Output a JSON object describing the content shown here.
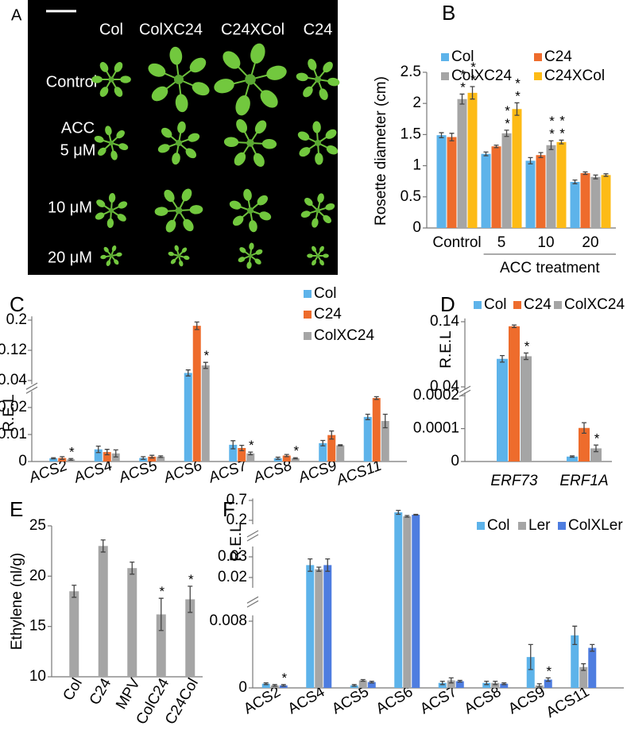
{
  "photo_panel": {
    "panel_label": "A",
    "column_labels": [
      "Col",
      "ColXC24",
      "C24XCol",
      "C24"
    ],
    "row_labels": [
      "Control",
      "ACC",
      "5 μM",
      "10 μM",
      "20 μM"
    ]
  },
  "chart_data": [
    {
      "type": "bar",
      "panel_label": "B",
      "y_label": "Rosette diameter (cm)",
      "x_label": "ACC treatment",
      "categories": [
        "Control",
        "5",
        "10",
        "20"
      ],
      "ylim": [
        0,
        2.5
      ],
      "yticks": [
        0,
        0.5,
        1,
        1.5,
        2,
        2.5
      ],
      "series": [
        {
          "name": "Col",
          "color": "#5db3ea",
          "values": [
            1.49,
            1.19,
            1.08,
            0.74
          ],
          "errors": [
            0.04,
            0.03,
            0.05,
            0.03
          ]
        },
        {
          "name": "C24",
          "color": "#ee6c2c",
          "values": [
            1.46,
            1.31,
            1.17,
            0.88
          ],
          "errors": [
            0.06,
            0.02,
            0.04,
            0.02
          ]
        },
        {
          "name": "ColXC24",
          "color": "#a5a5a5",
          "values": [
            2.07,
            1.52,
            1.33,
            0.82
          ],
          "errors": [
            0.08,
            0.05,
            0.07,
            0.03
          ],
          "significance": [
            "**",
            "**",
            "**",
            null
          ]
        },
        {
          "name": "C24XCol",
          "color": "#fdbb16",
          "values": [
            2.17,
            1.91,
            1.38,
            0.85
          ],
          "errors": [
            0.1,
            0.1,
            0.03,
            0.02
          ],
          "significance": [
            "**",
            "**",
            "**",
            null
          ]
        }
      ]
    },
    {
      "type": "bar",
      "panel_label": "C",
      "y_label": "R.E.L",
      "categories": [
        "ACS2",
        "ACS4",
        "ACS5",
        "ACS6",
        "ACS7",
        "ACS8",
        "ACS9",
        "ACS11"
      ],
      "y_segments": [
        {
          "ylim": [
            0,
            0.026
          ],
          "yticks": [
            0,
            0.01,
            0.02
          ]
        },
        {
          "ylim": [
            0.03,
            0.21
          ],
          "yticks": [
            0.04,
            0.12,
            0.2
          ]
        }
      ],
      "series": [
        {
          "name": "Col",
          "color": "#5db3ea",
          "values": [
            0.0012,
            0.0045,
            0.0013,
            0.06,
            0.0062,
            0.0012,
            0.0068,
            0.0165
          ],
          "errors": [
            0.0002,
            0.0012,
            0.0005,
            0.008,
            0.0015,
            0.0004,
            0.001,
            0.001
          ]
        },
        {
          "name": "C24",
          "color": "#ee6c2c",
          "values": [
            0.0013,
            0.0035,
            0.0018,
            0.185,
            0.005,
            0.0022,
            0.0098,
            0.0235
          ],
          "errors": [
            0.0005,
            0.001,
            0.0005,
            0.01,
            0.001,
            0.0004,
            0.0015,
            0.0005
          ]
        },
        {
          "name": "ColXC24",
          "color": "#a5a5a5",
          "values": [
            0.0008,
            0.003,
            0.0018,
            0.08,
            0.003,
            0.0012,
            0.006,
            0.015
          ],
          "errors": [
            0.0003,
            0.0013,
            0.0003,
            0.008,
            0.0005,
            0.0002,
            0.0002,
            0.0025
          ],
          "significance": [
            "*",
            null,
            null,
            "*",
            "*",
            "*",
            null,
            null
          ]
        }
      ]
    },
    {
      "type": "bar",
      "panel_label": "D",
      "y_label": "R.E.L",
      "categories": [
        "ERF73",
        "ERF1A"
      ],
      "y_segments": [
        {
          "ylim": [
            0,
            0.00021
          ],
          "yticks": [
            0,
            0.0001,
            0.0002
          ]
        },
        {
          "ylim": [
            0.036,
            0.145
          ],
          "yticks": [
            0.04,
            0.14
          ]
        }
      ],
      "series": [
        {
          "name": "Col",
          "color": "#5db3ea",
          "values": [
            0.083,
            1.5e-05
          ],
          "errors": [
            0.005,
            2e-06
          ]
        },
        {
          "name": "C24",
          "color": "#ee6c2c",
          "values": [
            0.133,
            0.000102
          ],
          "errors": [
            0.002,
            1.6e-05
          ]
        },
        {
          "name": "ColXC24",
          "color": "#a5a5a5",
          "values": [
            0.087,
            4e-05
          ],
          "errors": [
            0.005,
            1e-05
          ],
          "significance": [
            "*",
            "*"
          ]
        }
      ]
    },
    {
      "type": "bar",
      "panel_label": "E",
      "y_label": "Ethylene (nl/g)",
      "categories": [
        "Col",
        "C24",
        "MPV",
        "ColC24",
        "C24Col"
      ],
      "ylim": [
        10,
        25
      ],
      "yticks": [
        10,
        15,
        20,
        25
      ],
      "series": [
        {
          "color": "#a5a5a5",
          "values": [
            18.5,
            23.0,
            20.8,
            16.2,
            17.7
          ],
          "errors": [
            0.6,
            0.6,
            0.6,
            1.6,
            1.3
          ],
          "significance": [
            null,
            null,
            null,
            "*",
            "*"
          ]
        }
      ]
    },
    {
      "type": "bar",
      "panel_label": "F",
      "y_label": "R.E.L",
      "categories": [
        "ACS2",
        "ACS4",
        "ACS5",
        "ACS6",
        "ACS7",
        "ACS8",
        "ACS9",
        "ACS11"
      ],
      "y_segments": [
        {
          "ylim": [
            0,
            0.0087
          ],
          "yticks": [
            0,
            0.008
          ]
        },
        {
          "ylim": [
            0.015,
            0.035
          ],
          "yticks": [
            0.02,
            0.03
          ]
        },
        {
          "ylim": [
            0.1,
            0.75
          ],
          "yticks": [
            0.2,
            0.7
          ]
        }
      ],
      "series": [
        {
          "name": "Col",
          "color": "#5db3ea",
          "values": [
            0.0005,
            0.026,
            0.0003,
            0.4,
            0.0006,
            0.0006,
            0.0037,
            0.0063
          ],
          "errors": [
            0.0001,
            0.003,
            0.0001,
            0.05,
            0.0002,
            0.0002,
            0.0015,
            0.0011
          ]
        },
        {
          "name": "Ler",
          "color": "#a5a5a5",
          "values": [
            0.0003,
            0.024,
            0.0009,
            0.3,
            0.0009,
            0.0006,
            0.0003,
            0.0025
          ],
          "errors": [
            0.0001,
            0.001,
            0.0001,
            0.02,
            0.0003,
            0.0002,
            0.0002,
            0.0004
          ]
        },
        {
          "name": "ColXLer",
          "color": "#4e7de0",
          "values": [
            0.0003,
            0.026,
            0.0007,
            0.34,
            0.0008,
            0.0005,
            0.001,
            0.0048
          ],
          "errors": [
            0.0001,
            0.003,
            0.0001,
            0.01,
            0.0001,
            0.0001,
            0.0002,
            0.0004
          ],
          "significance": [
            "*",
            null,
            null,
            null,
            null,
            null,
            "*",
            null
          ]
        }
      ]
    }
  ]
}
